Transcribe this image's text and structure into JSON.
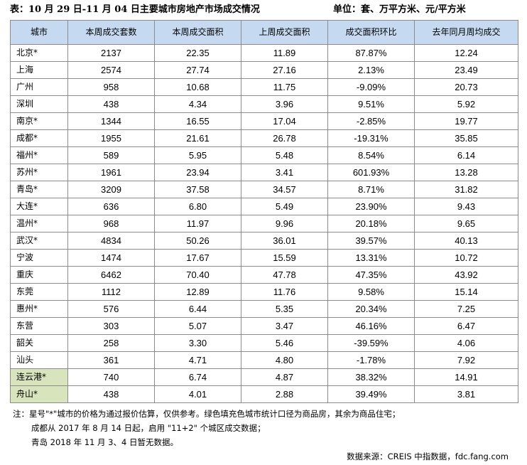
{
  "title": "表：10 月 29 日-11 月 04 日主要城市房地产市场成交情况",
  "unit": "单位：套、万平方米、元/平方米",
  "chart_data": {
    "type": "table",
    "columns": [
      "城市",
      "本周成交套数",
      "本周成交面积",
      "上周成交面积",
      "成交面积环比",
      "去年同月周均成交"
    ],
    "rows": [
      {
        "city": "北京*",
        "units": "2137",
        "area": "22.35",
        "prev_area": "11.89",
        "wow": "87.87%",
        "ly_avg": "12.24",
        "highlight": false
      },
      {
        "city": "上海",
        "units": "2574",
        "area": "27.74",
        "prev_area": "27.16",
        "wow": "2.13%",
        "ly_avg": "23.49",
        "highlight": false
      },
      {
        "city": "广州",
        "units": "958",
        "area": "10.68",
        "prev_area": "11.75",
        "wow": "-9.09%",
        "ly_avg": "20.73",
        "highlight": false
      },
      {
        "city": "深圳",
        "units": "438",
        "area": "4.34",
        "prev_area": "3.96",
        "wow": "9.51%",
        "ly_avg": "5.92",
        "highlight": false
      },
      {
        "city": "南京*",
        "units": "1344",
        "area": "16.55",
        "prev_area": "17.04",
        "wow": "-2.85%",
        "ly_avg": "19.77",
        "highlight": false
      },
      {
        "city": "成都*",
        "units": "1955",
        "area": "21.61",
        "prev_area": "26.78",
        "wow": "-19.31%",
        "ly_avg": "35.85",
        "highlight": false
      },
      {
        "city": "福州*",
        "units": "589",
        "area": "5.95",
        "prev_area": "5.48",
        "wow": "8.54%",
        "ly_avg": "6.14",
        "highlight": false
      },
      {
        "city": "苏州*",
        "units": "1961",
        "area": "23.94",
        "prev_area": "3.41",
        "wow": "601.93%",
        "ly_avg": "13.28",
        "highlight": false
      },
      {
        "city": "青岛*",
        "units": "3209",
        "area": "37.58",
        "prev_area": "34.57",
        "wow": "8.71%",
        "ly_avg": "31.82",
        "highlight": false
      },
      {
        "city": "大连*",
        "units": "636",
        "area": "6.80",
        "prev_area": "5.49",
        "wow": "23.90%",
        "ly_avg": "9.43",
        "highlight": false
      },
      {
        "city": "温州*",
        "units": "968",
        "area": "11.97",
        "prev_area": "9.96",
        "wow": "20.18%",
        "ly_avg": "9.65",
        "highlight": false
      },
      {
        "city": "武汉*",
        "units": "4834",
        "area": "50.26",
        "prev_area": "36.01",
        "wow": "39.57%",
        "ly_avg": "40.13",
        "highlight": false
      },
      {
        "city": "宁波",
        "units": "1474",
        "area": "17.67",
        "prev_area": "15.59",
        "wow": "13.31%",
        "ly_avg": "10.72",
        "highlight": false
      },
      {
        "city": "重庆",
        "units": "6462",
        "area": "70.40",
        "prev_area": "47.78",
        "wow": "47.35%",
        "ly_avg": "43.92",
        "highlight": false
      },
      {
        "city": "东莞",
        "units": "1112",
        "area": "12.89",
        "prev_area": "11.76",
        "wow": "9.58%",
        "ly_avg": "15.14",
        "highlight": false
      },
      {
        "city": "惠州*",
        "units": "576",
        "area": "6.44",
        "prev_area": "5.35",
        "wow": "20.34%",
        "ly_avg": "7.25",
        "highlight": false
      },
      {
        "city": "东营",
        "units": "303",
        "area": "5.07",
        "prev_area": "3.47",
        "wow": "46.16%",
        "ly_avg": "6.47",
        "highlight": false
      },
      {
        "city": "韶关",
        "units": "258",
        "area": "3.30",
        "prev_area": "5.46",
        "wow": "-39.59%",
        "ly_avg": "4.06",
        "highlight": false
      },
      {
        "city": "汕头",
        "units": "361",
        "area": "4.71",
        "prev_area": "4.80",
        "wow": "-1.78%",
        "ly_avg": "7.92",
        "highlight": false
      },
      {
        "city": "连云港*",
        "units": "740",
        "area": "6.74",
        "prev_area": "4.87",
        "wow": "38.32%",
        "ly_avg": "14.91",
        "highlight": true
      },
      {
        "city": "舟山*",
        "units": "438",
        "area": "4.01",
        "prev_area": "2.88",
        "wow": "39.49%",
        "ly_avg": "3.81",
        "highlight": true
      }
    ]
  },
  "notes": [
    "注：星号\"*\"城市的价格为通过报价估算，仅供参考。绿色填充色城市统计口径为商品房，其余为商品住宅；",
    "成都从 2017 年 8 月 14 日起，启用 \"11+2\" 个城区成交数据；",
    "青岛 2018 年 11 月 3、4 日暂无数据。"
  ],
  "source": "数据来源：CREIS 中指数据，fdc.fang.com",
  "colors": {
    "header_bg": "#c5d9f1",
    "highlight_bg": "#d8e4bc",
    "border": "#8c8c8c"
  }
}
